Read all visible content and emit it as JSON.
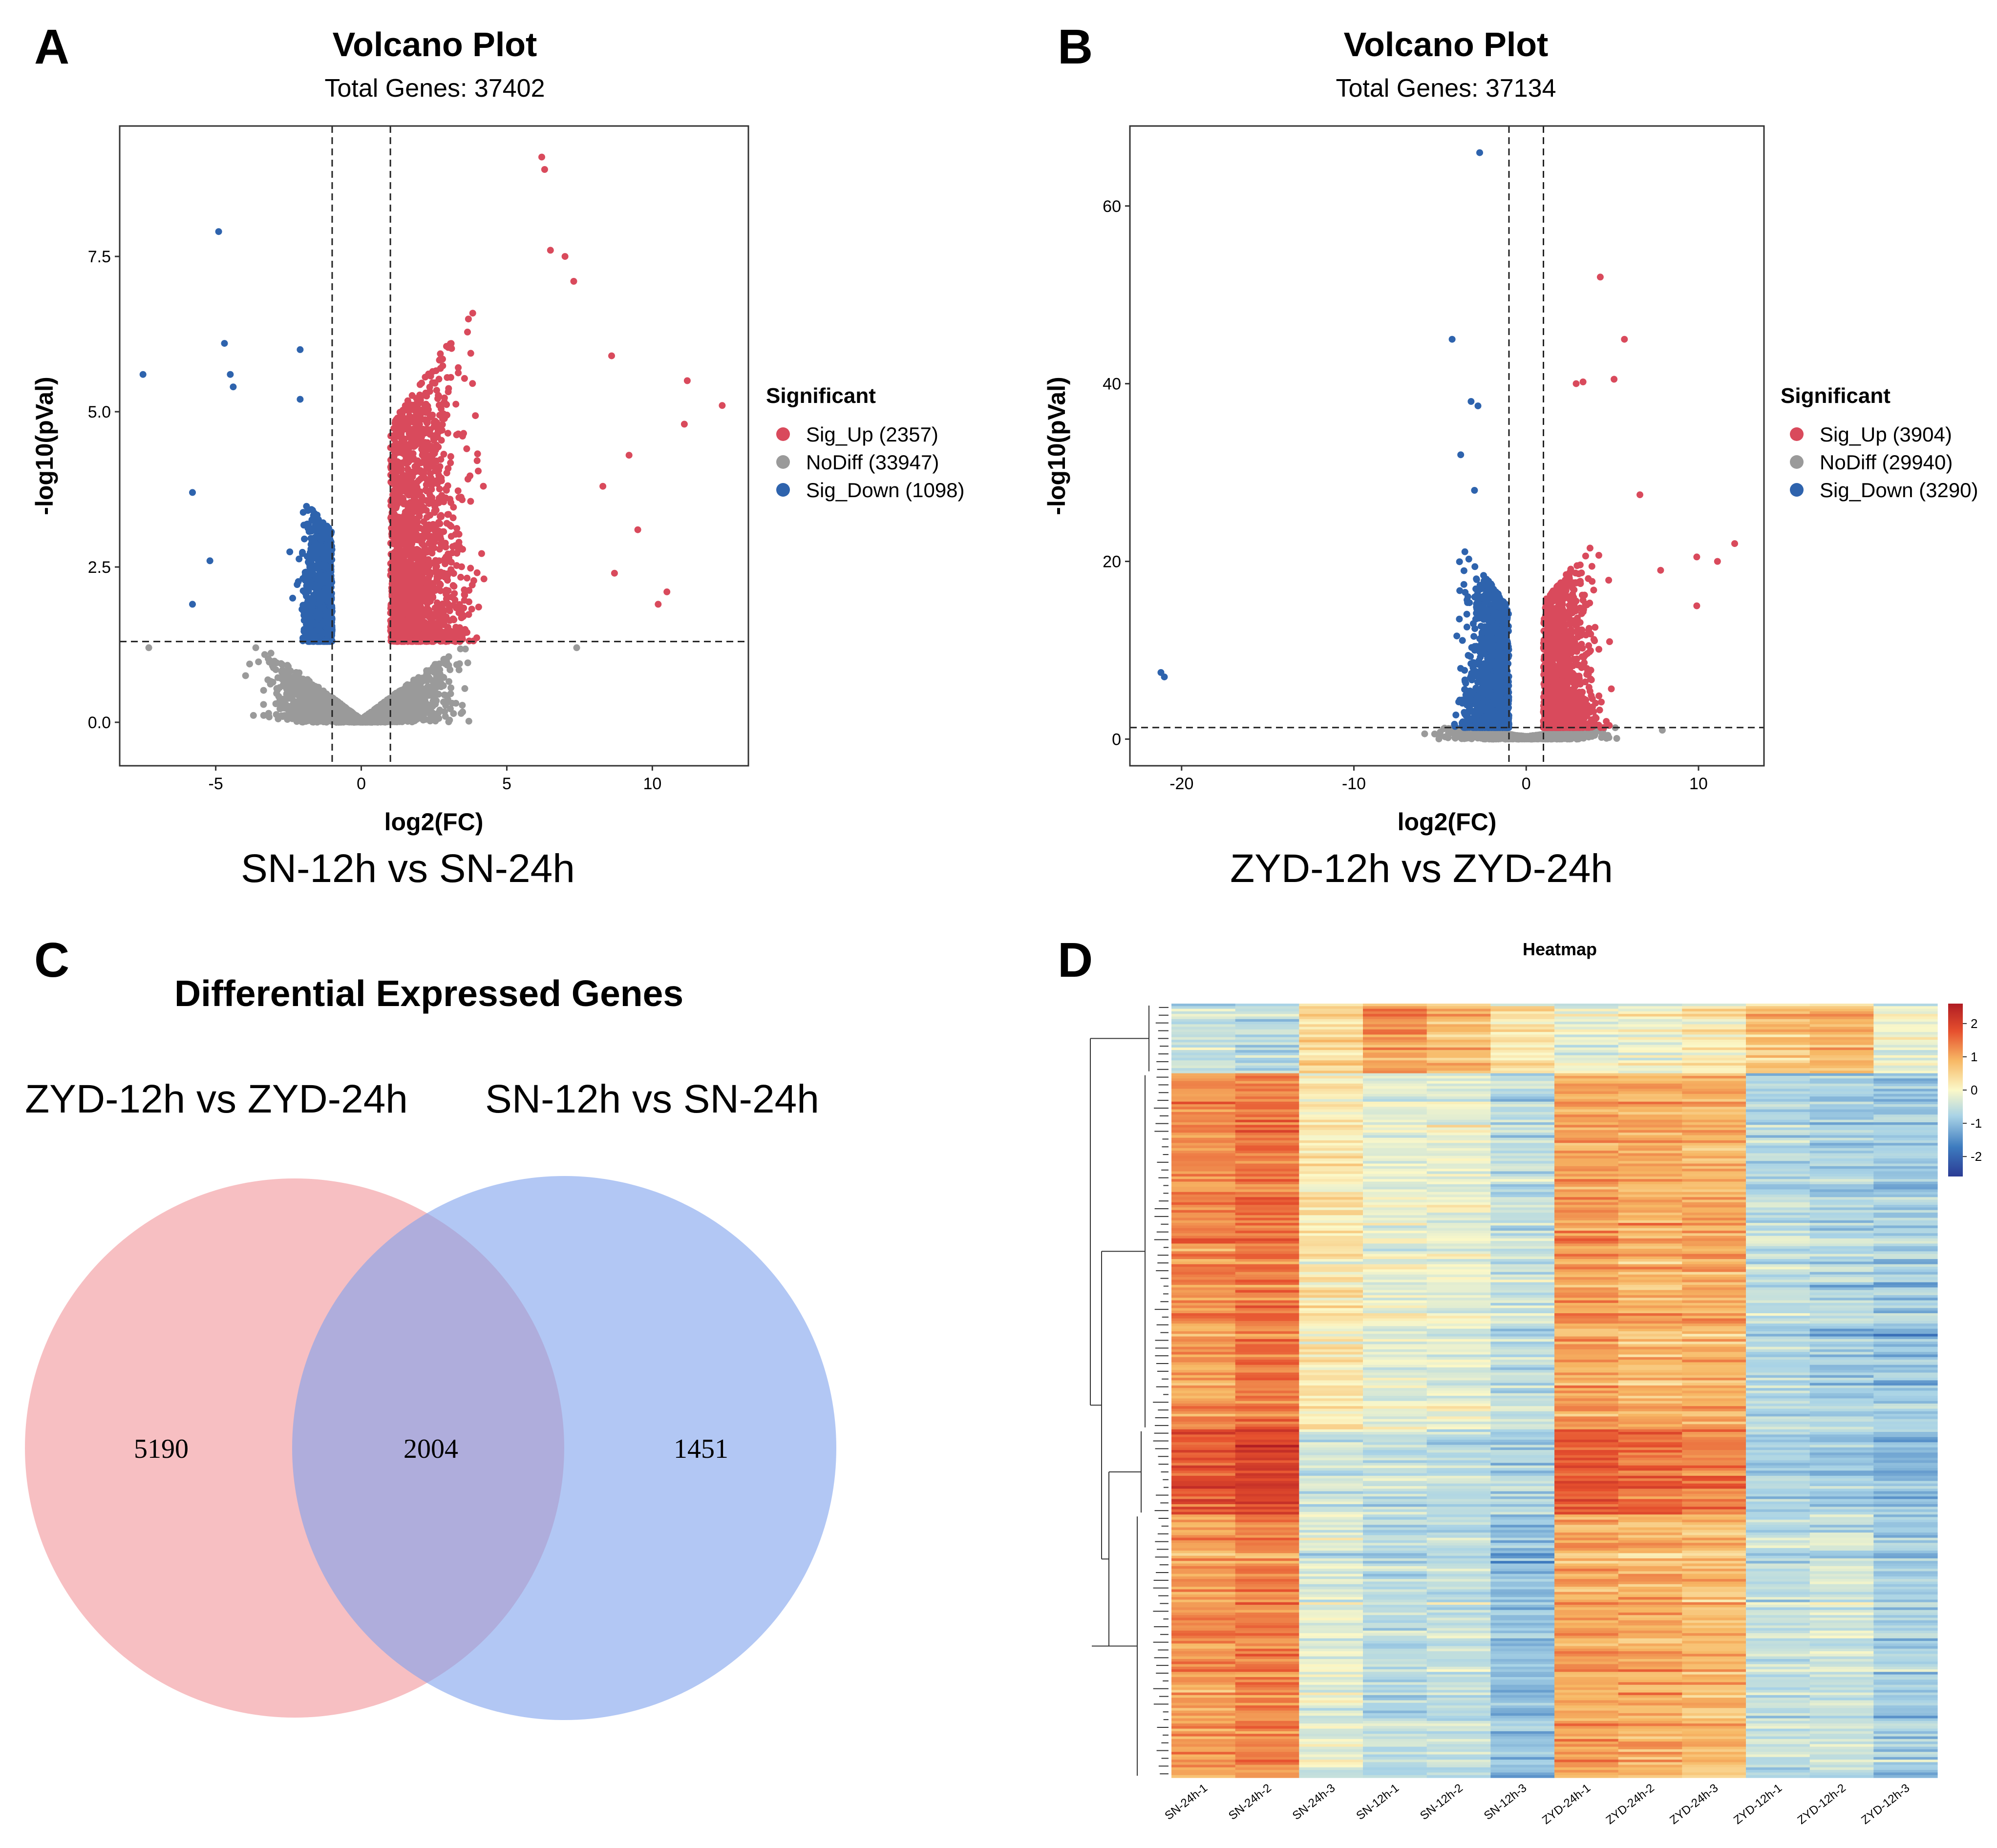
{
  "panels": {
    "A": {
      "letter": "A"
    },
    "B": {
      "letter": "B"
    },
    "C": {
      "letter": "C"
    },
    "D": {
      "letter": "D"
    }
  },
  "chart_data": [
    {
      "id": "A",
      "type": "scatter",
      "title": "Volcano Plot",
      "subtitle": "Total Genes: 37402",
      "xlabel": "log2(FC)",
      "ylabel": "-log10(pVal)",
      "caption": "SN-12h vs SN-24h",
      "xlim": [
        -8.3,
        13.3
      ],
      "ylim": [
        -0.7,
        9.6
      ],
      "xticks": [
        {
          "value": -5,
          "label": "-5"
        },
        {
          "value": 0,
          "label": "0"
        },
        {
          "value": 5,
          "label": "5"
        },
        {
          "value": 10,
          "label": "10"
        }
      ],
      "yticks": [
        {
          "value": 0,
          "label": "0.0"
        },
        {
          "value": 2.5,
          "label": "2.5"
        },
        {
          "value": 5,
          "label": "5.0"
        },
        {
          "value": 7.5,
          "label": "7.5"
        }
      ],
      "fc_threshold": 1,
      "p_threshold": 1.3,
      "legend": {
        "title": "Significant",
        "entries": [
          {
            "name": "Sig_Up",
            "count": 2357,
            "label": "Sig_Up (2357)",
            "color": "#d94a5c"
          },
          {
            "name": "NoDiff",
            "count": 33947,
            "label": "NoDiff (33947)",
            "color": "#9a9a9a"
          },
          {
            "name": "Sig_Down",
            "count": 1098,
            "label": "Sig_Down (1098)",
            "color": "#2e63ad"
          }
        ]
      },
      "highlight_points": [
        {
          "x": 6.2,
          "y": 9.1,
          "g": "up"
        },
        {
          "x": 6.3,
          "y": 8.9,
          "g": "up"
        },
        {
          "x": 6.5,
          "y": 7.6,
          "g": "up"
        },
        {
          "x": 7.0,
          "y": 7.5,
          "g": "up"
        },
        {
          "x": 7.3,
          "y": 7.1,
          "g": "up"
        },
        {
          "x": 11.2,
          "y": 5.5,
          "g": "up"
        },
        {
          "x": 12.4,
          "y": 5.1,
          "g": "up"
        },
        {
          "x": 11.1,
          "y": 4.8,
          "g": "up"
        },
        {
          "x": 8.6,
          "y": 5.9,
          "g": "up"
        },
        {
          "x": 9.2,
          "y": 4.3,
          "g": "up"
        },
        {
          "x": 8.3,
          "y": 3.8,
          "g": "up"
        },
        {
          "x": 9.5,
          "y": 3.1,
          "g": "up"
        },
        {
          "x": 10.5,
          "y": 2.1,
          "g": "up"
        },
        {
          "x": 10.2,
          "y": 1.9,
          "g": "up"
        },
        {
          "x": 8.7,
          "y": 2.4,
          "g": "up"
        },
        {
          "x": -4.9,
          "y": 7.9,
          "g": "down"
        },
        {
          "x": -4.7,
          "y": 6.1,
          "g": "down"
        },
        {
          "x": -2.1,
          "y": 6.0,
          "g": "down"
        },
        {
          "x": -7.5,
          "y": 5.6,
          "g": "down"
        },
        {
          "x": -4.5,
          "y": 5.6,
          "g": "down"
        },
        {
          "x": -4.4,
          "y": 5.4,
          "g": "down"
        },
        {
          "x": -2.1,
          "y": 5.2,
          "g": "down"
        },
        {
          "x": -5.8,
          "y": 3.7,
          "g": "down"
        },
        {
          "x": -5.2,
          "y": 2.6,
          "g": "down"
        },
        {
          "x": -5.8,
          "y": 1.9,
          "g": "down"
        },
        {
          "x": -7.3,
          "y": 1.2,
          "g": "none"
        },
        {
          "x": 7.4,
          "y": 1.2,
          "g": "none"
        }
      ]
    },
    {
      "id": "B",
      "type": "scatter",
      "title": "Volcano Plot",
      "subtitle": "Total Genes: 37134",
      "xlabel": "log2(FC)",
      "ylabel": "-log10(pVal)",
      "caption": "ZYD-12h vs ZYD-24h",
      "xlim": [
        -23,
        13.8
      ],
      "ylim": [
        -3,
        69
      ],
      "xticks": [
        {
          "value": -20,
          "label": "-20"
        },
        {
          "value": -10,
          "label": "-10"
        },
        {
          "value": 0,
          "label": "0"
        },
        {
          "value": 10,
          "label": "10"
        }
      ],
      "yticks": [
        {
          "value": 0,
          "label": "0"
        },
        {
          "value": 20,
          "label": "20"
        },
        {
          "value": 40,
          "label": "40"
        },
        {
          "value": 60,
          "label": "60"
        }
      ],
      "fc_threshold": 1,
      "p_threshold": 1.3,
      "legend": {
        "title": "Significant",
        "entries": [
          {
            "name": "Sig_Up",
            "count": 3904,
            "label": "Sig_Up (3904)",
            "color": "#d94a5c"
          },
          {
            "name": "NoDiff",
            "count": 29940,
            "label": "NoDiff (29940)",
            "color": "#9a9a9a"
          },
          {
            "name": "Sig_Down",
            "count": 3290,
            "label": "Sig_Down (3290)",
            "color": "#2e63ad"
          }
        ]
      },
      "highlight_points": [
        {
          "x": -2.7,
          "y": 66.0,
          "g": "down"
        },
        {
          "x": -4.3,
          "y": 45.0,
          "g": "down"
        },
        {
          "x": -3.2,
          "y": 38.0,
          "g": "down"
        },
        {
          "x": -2.8,
          "y": 37.5,
          "g": "down"
        },
        {
          "x": -21.2,
          "y": 7.5,
          "g": "down"
        },
        {
          "x": -21.0,
          "y": 7.0,
          "g": "down"
        },
        {
          "x": -3.8,
          "y": 32.0,
          "g": "down"
        },
        {
          "x": -3.0,
          "y": 28.0,
          "g": "down"
        },
        {
          "x": 4.3,
          "y": 52.0,
          "g": "up"
        },
        {
          "x": 5.7,
          "y": 45.0,
          "g": "up"
        },
        {
          "x": 5.1,
          "y": 40.5,
          "g": "up"
        },
        {
          "x": 2.9,
          "y": 40.0,
          "g": "up"
        },
        {
          "x": 3.3,
          "y": 40.2,
          "g": "up"
        },
        {
          "x": 12.1,
          "y": 22.0,
          "g": "up"
        },
        {
          "x": 11.1,
          "y": 20.0,
          "g": "up"
        },
        {
          "x": 9.9,
          "y": 20.5,
          "g": "up"
        },
        {
          "x": 7.8,
          "y": 19.0,
          "g": "up"
        },
        {
          "x": 6.6,
          "y": 27.5,
          "g": "up"
        },
        {
          "x": 9.9,
          "y": 15.0,
          "g": "up"
        },
        {
          "x": 7.9,
          "y": 1.0,
          "g": "none"
        }
      ]
    },
    {
      "id": "C",
      "type": "venn",
      "title": "Differential Expressed Genes",
      "sets": [
        {
          "name": "ZYD-12h vs ZYD-24h",
          "only": 5190,
          "color": "#f08a8f"
        },
        {
          "name": "SN-12h vs SN-24h",
          "only": 1451,
          "color": "#7ea1ec"
        }
      ],
      "intersection": 2004
    },
    {
      "id": "D",
      "type": "heatmap",
      "title": "Heatmap",
      "columns": [
        "SN-24h-1",
        "SN-24h-2",
        "SN-24h-3",
        "SN-12h-1",
        "SN-12h-2",
        "SN-12h-3",
        "ZYD-24h-1",
        "ZYD-24h-2",
        "ZYD-24h-3",
        "ZYD-12h-1",
        "ZYD-12h-2",
        "ZYD-12h-3"
      ],
      "scale": {
        "min": -2.6,
        "max": 2.6,
        "ticks": [
          {
            "value": 2,
            "label": "2"
          },
          {
            "value": 1,
            "label": "1"
          },
          {
            "value": 0,
            "label": "0"
          },
          {
            "value": -1,
            "label": "-1"
          },
          {
            "value": -2,
            "label": "-2"
          }
        ]
      },
      "colors": [
        "#2b3b94",
        "#3d7bbf",
        "#a9d3e6",
        "#fbf8c8",
        "#f7b865",
        "#e6502e",
        "#b01c23"
      ],
      "row_clusters": [
        {
          "fraction": 0.09,
          "means": [
            -0.6,
            -0.8,
            0.3,
            1.1,
            0.7,
            0.2,
            -0.3,
            -0.2,
            0.1,
            0.6,
            0.8,
            -0.2
          ]
        },
        {
          "fraction": 0.46,
          "means": [
            1.2,
            1.4,
            0.2,
            -0.2,
            -0.2,
            -0.6,
            1.1,
            0.9,
            0.9,
            -0.7,
            -0.8,
            -0.9
          ]
        },
        {
          "fraction": 0.11,
          "means": [
            1.7,
            2.0,
            -0.5,
            -0.6,
            -0.7,
            -0.8,
            1.7,
            1.5,
            1.3,
            -0.9,
            -1.0,
            -1.1
          ]
        },
        {
          "fraction": 0.34,
          "means": [
            1.1,
            1.3,
            -0.3,
            -0.7,
            -0.6,
            -1.1,
            1.0,
            0.9,
            0.8,
            -0.6,
            -0.5,
            -0.9
          ]
        }
      ]
    }
  ]
}
